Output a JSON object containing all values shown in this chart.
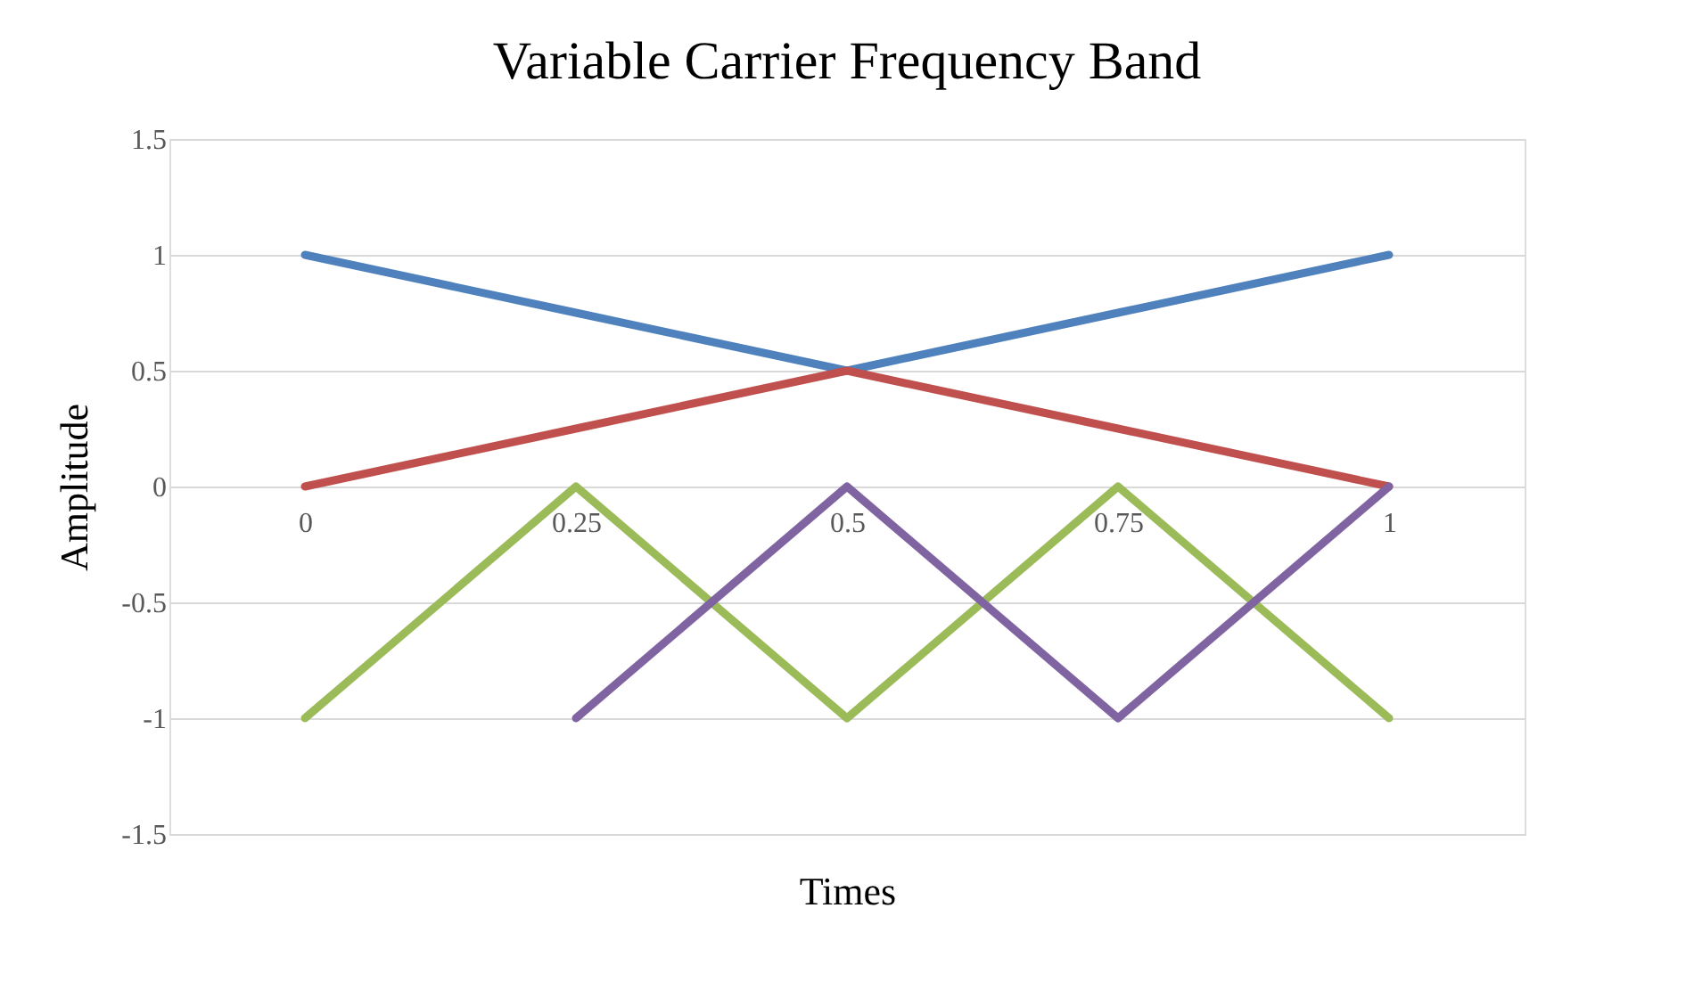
{
  "chart_data": {
    "type": "line",
    "title": "Variable Carrier Frequency Band",
    "xlabel": "Times",
    "ylabel": "Amplitude",
    "categories": [
      "0",
      "0.25",
      "0.5",
      "0.75",
      "1"
    ],
    "series": [
      {
        "color": "#4f81bd",
        "values": [
          1,
          0.75,
          0.5,
          0.75,
          1
        ]
      },
      {
        "color": "#c0504d",
        "values": [
          0,
          0.25,
          0.5,
          0.25,
          0
        ]
      },
      {
        "color": "#9bbb59",
        "values": [
          -1,
          0,
          -1,
          0,
          -1
        ]
      },
      {
        "color": "#8064a2",
        "values": [
          null,
          -1,
          0,
          -1,
          0
        ]
      }
    ],
    "ylim": [
      -1.5,
      1.5
    ],
    "yticks": [
      -1.5,
      {
        "value": -1,
        "label": "-1"
      },
      -0.5,
      {
        "value": 0,
        "label": "0"
      },
      0.5,
      {
        "value": 1,
        "label": "1"
      },
      1.5
    ],
    "grid": "y",
    "legend": false,
    "marker": "none",
    "line_style": "solid"
  }
}
